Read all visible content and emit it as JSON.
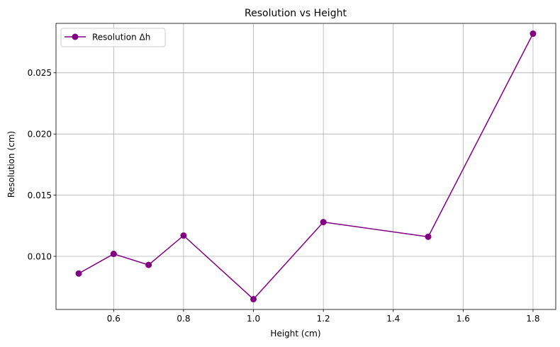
{
  "chart_data": {
    "type": "line",
    "title": "Resolution vs Height",
    "xlabel": "Height (cm)",
    "ylabel": "Resolution (cm)",
    "x": [
      0.5,
      0.6,
      0.7,
      0.8,
      1.0,
      1.2,
      1.5,
      1.8
    ],
    "series": [
      {
        "name": "Resolution Δh",
        "values": [
          0.0086,
          0.0102,
          0.0093,
          0.0117,
          0.0065,
          0.0128,
          0.0116,
          0.0282
        ],
        "color": "#800080",
        "marker": "circle"
      }
    ],
    "xlim": [
      0.435,
      1.865
    ],
    "ylim": [
      0.00566,
      0.02904
    ],
    "xticks": [
      0.6,
      0.8,
      1.0,
      1.2,
      1.4,
      1.6,
      1.8
    ],
    "xtick_labels": [
      "0.6",
      "0.8",
      "1.0",
      "1.2",
      "1.4",
      "1.6",
      "1.8"
    ],
    "yticks": [
      0.01,
      0.015,
      0.02,
      0.025
    ],
    "ytick_labels": [
      "0.010",
      "0.015",
      "0.020",
      "0.025"
    ],
    "grid": true,
    "legend": "upper-left"
  }
}
